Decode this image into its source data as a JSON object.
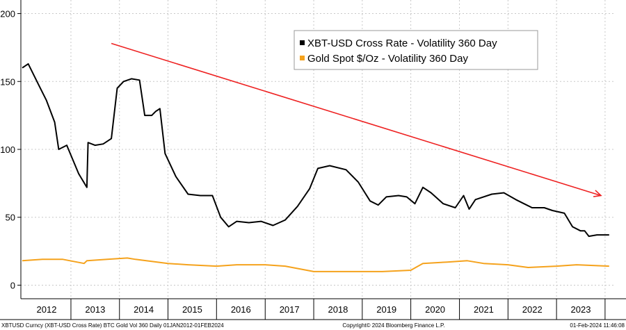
{
  "chart_data": {
    "type": "line",
    "title": "",
    "xlabel": "",
    "ylabel": "",
    "ylim": [
      -10,
      210
    ],
    "y_ticks": [
      0,
      50,
      100,
      150,
      200
    ],
    "x_range": [
      "2012-01-01",
      "2024-02-01"
    ],
    "x_year_labels": [
      "2012",
      "2013",
      "2014",
      "2015",
      "2016",
      "2017",
      "2018",
      "2019",
      "2020",
      "2021",
      "2022",
      "2023"
    ],
    "grid": "dashed-horizontal-and-vertical",
    "legend_position": "top-center",
    "series": [
      {
        "name": "XBT-USD Cross Rate - Volatility 360 Day",
        "color": "#000000",
        "points": [
          [
            "2012-01-01",
            160
          ],
          [
            "2012-02-15",
            163
          ],
          [
            "2012-05-01",
            148
          ],
          [
            "2012-07-01",
            136
          ],
          [
            "2012-09-01",
            120
          ],
          [
            "2012-10-01",
            100
          ],
          [
            "2012-12-01",
            103
          ],
          [
            "2013-03-01",
            82
          ],
          [
            "2013-05-01",
            72
          ],
          [
            "2013-05-10",
            105
          ],
          [
            "2013-07-01",
            103
          ],
          [
            "2013-09-01",
            104
          ],
          [
            "2013-11-01",
            108
          ],
          [
            "2013-12-15",
            145
          ],
          [
            "2014-02-01",
            150
          ],
          [
            "2014-04-01",
            152
          ],
          [
            "2014-06-01",
            151
          ],
          [
            "2014-07-10",
            125
          ],
          [
            "2014-09-01",
            125
          ],
          [
            "2014-10-01",
            128
          ],
          [
            "2014-11-01",
            130
          ],
          [
            "2014-12-10",
            97
          ],
          [
            "2015-03-01",
            80
          ],
          [
            "2015-06-01",
            67
          ],
          [
            "2015-09-01",
            66
          ],
          [
            "2015-12-01",
            66
          ],
          [
            "2016-02-01",
            50
          ],
          [
            "2016-04-01",
            43
          ],
          [
            "2016-06-01",
            47
          ],
          [
            "2016-09-01",
            46
          ],
          [
            "2016-12-01",
            47
          ],
          [
            "2017-03-01",
            44
          ],
          [
            "2017-06-01",
            48
          ],
          [
            "2017-09-01",
            58
          ],
          [
            "2017-12-01",
            71
          ],
          [
            "2018-02-01",
            86
          ],
          [
            "2018-05-01",
            88
          ],
          [
            "2018-09-01",
            85
          ],
          [
            "2018-12-01",
            76
          ],
          [
            "2019-03-01",
            62
          ],
          [
            "2019-05-01",
            59
          ],
          [
            "2019-07-01",
            65
          ],
          [
            "2019-10-01",
            66
          ],
          [
            "2019-12-01",
            65
          ],
          [
            "2020-02-01",
            60
          ],
          [
            "2020-04-01",
            72
          ],
          [
            "2020-06-01",
            68
          ],
          [
            "2020-09-01",
            60
          ],
          [
            "2020-12-01",
            57
          ],
          [
            "2021-02-01",
            66
          ],
          [
            "2021-03-15",
            56
          ],
          [
            "2021-05-01",
            63
          ],
          [
            "2021-09-01",
            67
          ],
          [
            "2021-12-01",
            68
          ],
          [
            "2022-03-01",
            63
          ],
          [
            "2022-05-01",
            60
          ],
          [
            "2022-07-01",
            57
          ],
          [
            "2022-10-01",
            57
          ],
          [
            "2022-12-01",
            55
          ],
          [
            "2023-03-01",
            53
          ],
          [
            "2023-05-01",
            43
          ],
          [
            "2023-07-01",
            40
          ],
          [
            "2023-08-01",
            40
          ],
          [
            "2023-09-01",
            36
          ],
          [
            "2023-11-01",
            37
          ],
          [
            "2024-02-01",
            37
          ]
        ]
      },
      {
        "name": "Gold Spot $/Oz - Volatility 360 Day",
        "color": "#f5a21c",
        "points": [
          [
            "2012-01-01",
            18
          ],
          [
            "2012-06-01",
            19
          ],
          [
            "2012-11-01",
            19
          ],
          [
            "2013-04-10",
            16
          ],
          [
            "2013-05-01",
            18
          ],
          [
            "2013-10-01",
            19
          ],
          [
            "2014-03-01",
            20
          ],
          [
            "2014-05-01",
            19
          ],
          [
            "2015-01-01",
            16
          ],
          [
            "2015-06-01",
            15
          ],
          [
            "2016-01-01",
            14
          ],
          [
            "2016-06-01",
            15
          ],
          [
            "2017-01-01",
            15
          ],
          [
            "2017-06-01",
            14
          ],
          [
            "2018-01-01",
            10
          ],
          [
            "2018-06-01",
            10
          ],
          [
            "2019-01-01",
            10
          ],
          [
            "2019-06-01",
            10
          ],
          [
            "2020-01-01",
            11
          ],
          [
            "2020-04-01",
            16
          ],
          [
            "2020-10-01",
            17
          ],
          [
            "2021-03-01",
            18
          ],
          [
            "2021-07-01",
            16
          ],
          [
            "2022-01-01",
            15
          ],
          [
            "2022-06-01",
            13
          ],
          [
            "2023-01-01",
            14
          ],
          [
            "2023-06-01",
            15
          ],
          [
            "2024-02-01",
            14
          ]
        ]
      }
    ],
    "annotations": [
      {
        "type": "arrow",
        "color": "#ee2222",
        "from": [
          "2013-11-01",
          178
        ],
        "to": [
          "2023-12-01",
          66
        ]
      }
    ]
  },
  "footer": {
    "left": "XBTUSD Curncy (XBT-USD Cross Rate) BTC Gold Vol 360  Daily 01JAN2012-01FEB2024",
    "center": "Copyright© 2024 Bloomberg Finance L.P.",
    "right": "01-Feb-2024 11:46:08"
  }
}
